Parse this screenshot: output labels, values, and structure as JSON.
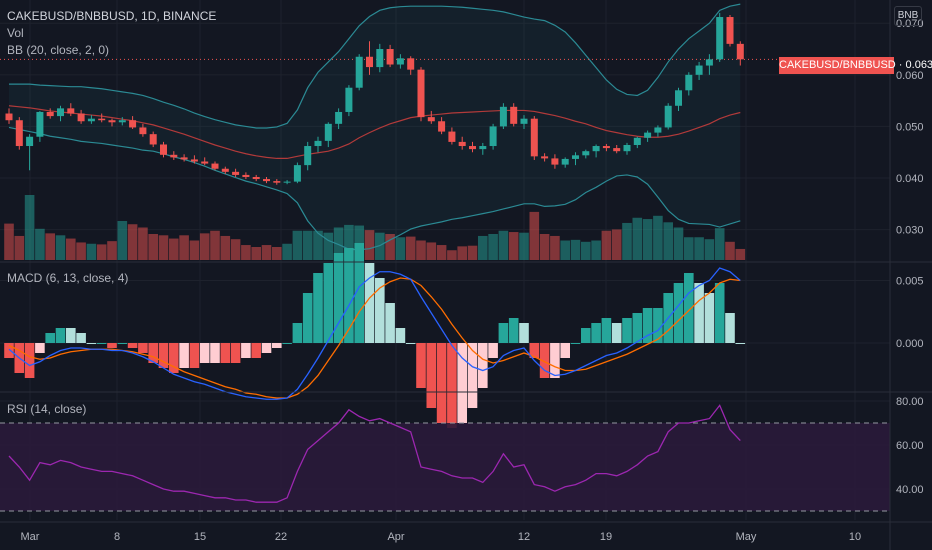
{
  "header": {
    "symbol_line": "CAKEBUSD/BNBBUSD, 1D, BINANCE",
    "vol_label": "Vol",
    "bb_label": "BB (20, close, 2, 0)",
    "macd_label": "MACD (6, 13, close, 4)",
    "rsi_label": "RSI (14, close)",
    "unit": "BNB",
    "last_price_tag": "CAKEBUSD/BNBBUSD · 0.063"
  },
  "colors": {
    "background": "#131722",
    "up": "#26a69a",
    "down": "#ef5350",
    "bb_band": "#2b8a94",
    "bb_basis": "#b23a3a",
    "macd_line": "#2962ff",
    "signal_line": "#ff6d00",
    "rsi_line": "#9c27b0",
    "rsi_fill": "#2a1a3a",
    "grid": "#1e222d"
  },
  "chart_data": [
    {
      "type": "candlestick",
      "panel": "price",
      "title": "CAKEBUSD/BNBBUSD, 1D, BINANCE",
      "ylabel": "BNB",
      "ylim": [
        0.0245,
        0.0745
      ],
      "yticks": [
        "0.070",
        "0.060",
        "0.050",
        "0.040",
        "0.030"
      ],
      "xticks": [
        "Mar",
        "8",
        "15",
        "22",
        "Apr",
        "12",
        "19",
        "May",
        "10"
      ],
      "last_price": 0.063,
      "candles": [
        [
          0.0525,
          0.0535,
          0.0505,
          0.0512
        ],
        [
          0.0512,
          0.0518,
          0.0455,
          0.0462
        ],
        [
          0.0462,
          0.0485,
          0.0415,
          0.048
        ],
        [
          0.048,
          0.053,
          0.047,
          0.0528
        ],
        [
          0.0528,
          0.0535,
          0.0515,
          0.052
        ],
        [
          0.052,
          0.054,
          0.051,
          0.0535
        ],
        [
          0.0535,
          0.0545,
          0.052,
          0.0525
        ],
        [
          0.0525,
          0.0532,
          0.0505,
          0.051
        ],
        [
          0.051,
          0.0522,
          0.0505,
          0.0515
        ],
        [
          0.0515,
          0.0525,
          0.0508,
          0.0512
        ],
        [
          0.0512,
          0.0515,
          0.05,
          0.0508
        ],
        [
          0.0508,
          0.0518,
          0.0502,
          0.0512
        ],
        [
          0.0512,
          0.052,
          0.0495,
          0.0498
        ],
        [
          0.0498,
          0.0505,
          0.048,
          0.0485
        ],
        [
          0.0485,
          0.049,
          0.046,
          0.0465
        ],
        [
          0.0465,
          0.047,
          0.044,
          0.0445
        ],
        [
          0.0445,
          0.0452,
          0.0435,
          0.044
        ],
        [
          0.044,
          0.0446,
          0.0432,
          0.0436
        ],
        [
          0.0436,
          0.0444,
          0.0428,
          0.0432
        ],
        [
          0.0432,
          0.044,
          0.0425,
          0.0428
        ],
        [
          0.0428,
          0.0432,
          0.0415,
          0.0418
        ],
        [
          0.0418,
          0.0422,
          0.0408,
          0.0412
        ],
        [
          0.0412,
          0.0418,
          0.0402,
          0.0406
        ],
        [
          0.0406,
          0.0411,
          0.0398,
          0.0402
        ],
        [
          0.0402,
          0.0406,
          0.0394,
          0.0398
        ],
        [
          0.0398,
          0.0402,
          0.039,
          0.0394
        ],
        [
          0.0394,
          0.0398,
          0.0387,
          0.0391
        ],
        [
          0.0391,
          0.0396,
          0.0388,
          0.0393
        ],
        [
          0.0393,
          0.043,
          0.039,
          0.0425
        ],
        [
          0.0425,
          0.047,
          0.0415,
          0.0462
        ],
        [
          0.0462,
          0.048,
          0.045,
          0.0472
        ],
        [
          0.0472,
          0.0508,
          0.046,
          0.0505
        ],
        [
          0.0505,
          0.0535,
          0.0495,
          0.0528
        ],
        [
          0.0528,
          0.058,
          0.052,
          0.0575
        ],
        [
          0.0575,
          0.064,
          0.057,
          0.0635
        ],
        [
          0.0635,
          0.0665,
          0.06,
          0.0615
        ],
        [
          0.0615,
          0.066,
          0.0605,
          0.065
        ],
        [
          0.065,
          0.0658,
          0.0615,
          0.062
        ],
        [
          0.062,
          0.064,
          0.0612,
          0.0632
        ],
        [
          0.0632,
          0.0636,
          0.06,
          0.061
        ],
        [
          0.061,
          0.0615,
          0.051,
          0.0518
        ],
        [
          0.0518,
          0.053,
          0.0505,
          0.051
        ],
        [
          0.051,
          0.0518,
          0.0485,
          0.049
        ],
        [
          0.049,
          0.0498,
          0.0465,
          0.047
        ],
        [
          0.047,
          0.048,
          0.0455,
          0.0462
        ],
        [
          0.0462,
          0.047,
          0.045,
          0.0456
        ],
        [
          0.0456,
          0.0468,
          0.0445,
          0.0462
        ],
        [
          0.0462,
          0.0505,
          0.0455,
          0.05
        ],
        [
          0.05,
          0.0545,
          0.0495,
          0.0538
        ],
        [
          0.0538,
          0.0545,
          0.05,
          0.0505
        ],
        [
          0.0505,
          0.0522,
          0.0495,
          0.0515
        ],
        [
          0.0515,
          0.052,
          0.0435,
          0.0442
        ],
        [
          0.0442,
          0.0448,
          0.0432,
          0.0438
        ],
        [
          0.0438,
          0.0446,
          0.0418,
          0.0426
        ],
        [
          0.0426,
          0.044,
          0.042,
          0.0437
        ],
        [
          0.0437,
          0.045,
          0.0425,
          0.0444
        ],
        [
          0.0444,
          0.0455,
          0.0438,
          0.0452
        ],
        [
          0.0452,
          0.0465,
          0.044,
          0.0462
        ],
        [
          0.0462,
          0.0466,
          0.0452,
          0.0458
        ],
        [
          0.0458,
          0.0464,
          0.0448,
          0.0452
        ],
        [
          0.0452,
          0.0468,
          0.0445,
          0.0464
        ],
        [
          0.0464,
          0.048,
          0.0458,
          0.0478
        ],
        [
          0.0478,
          0.0492,
          0.047,
          0.0488
        ],
        [
          0.0488,
          0.0502,
          0.048,
          0.0498
        ],
        [
          0.0498,
          0.0545,
          0.0494,
          0.054
        ],
        [
          0.054,
          0.0575,
          0.053,
          0.057
        ],
        [
          0.057,
          0.0605,
          0.056,
          0.06
        ],
        [
          0.06,
          0.0625,
          0.059,
          0.0618
        ],
        [
          0.0618,
          0.064,
          0.06,
          0.063
        ],
        [
          0.063,
          0.072,
          0.0625,
          0.0712
        ],
        [
          0.0712,
          0.0716,
          0.0655,
          0.066
        ],
        [
          0.066,
          0.0665,
          0.0618,
          0.063
        ]
      ],
      "volumes": [
        0.56,
        0.37,
        1.0,
        0.48,
        0.41,
        0.38,
        0.33,
        0.27,
        0.25,
        0.24,
        0.29,
        0.6,
        0.55,
        0.5,
        0.4,
        0.38,
        0.33,
        0.38,
        0.3,
        0.41,
        0.45,
        0.37,
        0.32,
        0.23,
        0.2,
        0.23,
        0.2,
        0.25,
        0.45,
        0.45,
        0.45,
        0.42,
        0.5,
        0.54,
        0.53,
        0.46,
        0.42,
        0.4,
        0.35,
        0.36,
        0.3,
        0.27,
        0.23,
        0.15,
        0.21,
        0.22,
        0.37,
        0.4,
        0.45,
        0.43,
        0.42,
        0.74,
        0.4,
        0.37,
        0.3,
        0.31,
        0.28,
        0.3,
        0.45,
        0.47,
        0.57,
        0.65,
        0.63,
        0.68,
        0.58,
        0.5,
        0.35,
        0.35,
        0.32,
        0.49,
        0.28,
        0.17
      ],
      "bb_upper": [
        0.0582,
        0.0582,
        0.0582,
        0.058,
        0.0579,
        0.0578,
        0.0577,
        0.0577,
        0.0575,
        0.0573,
        0.057,
        0.0567,
        0.0564,
        0.056,
        0.0554,
        0.0547,
        0.0541,
        0.0534,
        0.0526,
        0.0519,
        0.0513,
        0.0508,
        0.0503,
        0.05,
        0.0497,
        0.0497,
        0.0499,
        0.0506,
        0.0532,
        0.0575,
        0.0605,
        0.0625,
        0.0645,
        0.067,
        0.0695,
        0.0713,
        0.0725,
        0.073,
        0.0732,
        0.0733,
        0.0733,
        0.0733,
        0.0733,
        0.0732,
        0.0731,
        0.0729,
        0.0727,
        0.0725,
        0.0722,
        0.0717,
        0.0712,
        0.0708,
        0.0705,
        0.0696,
        0.0683,
        0.0662,
        0.0638,
        0.0614,
        0.059,
        0.0572,
        0.0562,
        0.056,
        0.057,
        0.0595,
        0.0625,
        0.065,
        0.067,
        0.0685,
        0.07,
        0.0725,
        0.0733,
        0.0737
      ],
      "bb_basis": [
        0.054,
        0.0538,
        0.0536,
        0.0533,
        0.053,
        0.0528,
        0.0526,
        0.0524,
        0.0522,
        0.052,
        0.0517,
        0.0514,
        0.0511,
        0.0507,
        0.0503,
        0.0497,
        0.0491,
        0.0485,
        0.0478,
        0.0471,
        0.0464,
        0.0458,
        0.0452,
        0.0447,
        0.0443,
        0.044,
        0.0438,
        0.0438,
        0.0442,
        0.0446,
        0.0449,
        0.0452,
        0.0458,
        0.0466,
        0.0478,
        0.0488,
        0.0497,
        0.0505,
        0.0511,
        0.0517,
        0.052,
        0.0522,
        0.0524,
        0.0526,
        0.0527,
        0.0528,
        0.0529,
        0.053,
        0.0531,
        0.0531,
        0.0531,
        0.0529,
        0.0525,
        0.0521,
        0.0516,
        0.051,
        0.0505,
        0.0498,
        0.0492,
        0.0488,
        0.0484,
        0.0481,
        0.0479,
        0.0479,
        0.0481,
        0.0485,
        0.0491,
        0.0498,
        0.0505,
        0.0515,
        0.0522,
        0.0527
      ],
      "bb_lower": [
        0.0498,
        0.0494,
        0.049,
        0.0486,
        0.0481,
        0.0478,
        0.0475,
        0.0471,
        0.0469,
        0.0467,
        0.0464,
        0.0461,
        0.0458,
        0.0454,
        0.0452,
        0.0447,
        0.0441,
        0.0436,
        0.043,
        0.0423,
        0.0415,
        0.0408,
        0.0401,
        0.0394,
        0.0389,
        0.0383,
        0.0377,
        0.037,
        0.0352,
        0.0317,
        0.0293,
        0.0279,
        0.0271,
        0.0262,
        0.0261,
        0.0263,
        0.0269,
        0.028,
        0.029,
        0.0301,
        0.0307,
        0.0311,
        0.0315,
        0.032,
        0.0323,
        0.0327,
        0.0331,
        0.0335,
        0.034,
        0.0345,
        0.035,
        0.035,
        0.0345,
        0.0346,
        0.0349,
        0.0358,
        0.0372,
        0.0382,
        0.0394,
        0.0404,
        0.0406,
        0.0402,
        0.0388,
        0.0363,
        0.0337,
        0.032,
        0.0312,
        0.0311,
        0.031,
        0.0305,
        0.0311,
        0.0317
      ]
    },
    {
      "type": "line",
      "panel": "macd",
      "title": "MACD (6, 13, close, 4)",
      "ylim": [
        -0.006,
        0.006
      ],
      "yticks": [
        "0.005",
        "0.000"
      ],
      "series": [
        {
          "name": "MACD",
          "values": [
            -0.0005,
            -0.0012,
            -0.0018,
            -0.0015,
            -0.001,
            -0.0006,
            -0.0004,
            -0.0004,
            -0.0005,
            -0.0005,
            -0.0006,
            -0.0006,
            -0.0008,
            -0.0011,
            -0.0015,
            -0.002,
            -0.0025,
            -0.0028,
            -0.0031,
            -0.0033,
            -0.0036,
            -0.0039,
            -0.0041,
            -0.0043,
            -0.0044,
            -0.0045,
            -0.0045,
            -0.0044,
            -0.0037,
            -0.0025,
            -0.0012,
            0.0002,
            0.0016,
            0.003,
            0.0045,
            0.0052,
            0.0057,
            0.0057,
            0.0055,
            0.0051,
            0.0037,
            0.0024,
            0.0011,
            -0.0002,
            -0.0012,
            -0.0019,
            -0.0022,
            -0.0019,
            -0.001,
            -0.0006,
            -0.0004,
            -0.0014,
            -0.0022,
            -0.0026,
            -0.0025,
            -0.0022,
            -0.0018,
            -0.0014,
            -0.001,
            -0.0008,
            -0.0004,
            0.0001,
            0.0006,
            0.001,
            0.002,
            0.003,
            0.004,
            0.0046,
            0.005,
            0.006,
            0.0057,
            0.005
          ]
        },
        {
          "name": "Signal",
          "values": [
            -0.0002,
            -0.0006,
            -0.0011,
            -0.0013,
            -0.0012,
            -0.0009,
            -0.0007,
            -0.0006,
            -0.0005,
            -0.0005,
            -0.0005,
            -0.0006,
            -0.0007,
            -0.0009,
            -0.0011,
            -0.0015,
            -0.0019,
            -0.0023,
            -0.0026,
            -0.0029,
            -0.0032,
            -0.0035,
            -0.0037,
            -0.004,
            -0.0041,
            -0.0043,
            -0.0044,
            -0.0044,
            -0.0041,
            -0.0035,
            -0.0026,
            -0.0014,
            -0.0002,
            0.0011,
            0.0025,
            0.0036,
            0.0044,
            0.0049,
            0.0052,
            0.0051,
            0.0046,
            0.0037,
            0.0027,
            0.0015,
            0.0004,
            -0.0006,
            -0.0013,
            -0.0016,
            -0.0014,
            -0.0011,
            -0.0008,
            -0.0011,
            -0.0015,
            -0.0019,
            -0.0022,
            -0.0022,
            -0.0021,
            -0.0018,
            -0.0015,
            -0.0012,
            -0.0009,
            -0.0005,
            -0.0001,
            0.0003,
            0.001,
            0.0018,
            0.0026,
            0.0034,
            0.004,
            0.0048,
            0.0051,
            0.005
          ]
        }
      ]
    },
    {
      "type": "line",
      "panel": "rsi",
      "title": "RSI (14, close)",
      "ylim": [
        29,
        81
      ],
      "yticks": [
        "80.00",
        "60.00",
        "40.00"
      ],
      "bands": [
        30,
        70
      ],
      "series": [
        {
          "name": "RSI",
          "values": [
            55,
            50,
            44,
            52,
            51,
            53,
            52,
            50,
            49,
            48,
            48,
            47,
            46,
            44,
            42,
            40,
            39,
            39,
            38,
            37,
            36,
            36,
            35,
            35,
            34,
            34,
            34,
            36,
            48,
            58,
            62,
            66,
            70,
            76,
            73,
            71,
            72,
            70,
            68,
            66,
            50,
            49,
            48,
            46,
            45,
            45,
            43,
            48,
            56,
            50,
            51,
            42,
            41,
            39,
            41,
            42,
            44,
            47,
            47,
            46,
            48,
            51,
            55,
            57,
            66,
            70,
            70,
            71,
            72,
            78,
            67,
            62
          ]
        }
      ]
    }
  ]
}
